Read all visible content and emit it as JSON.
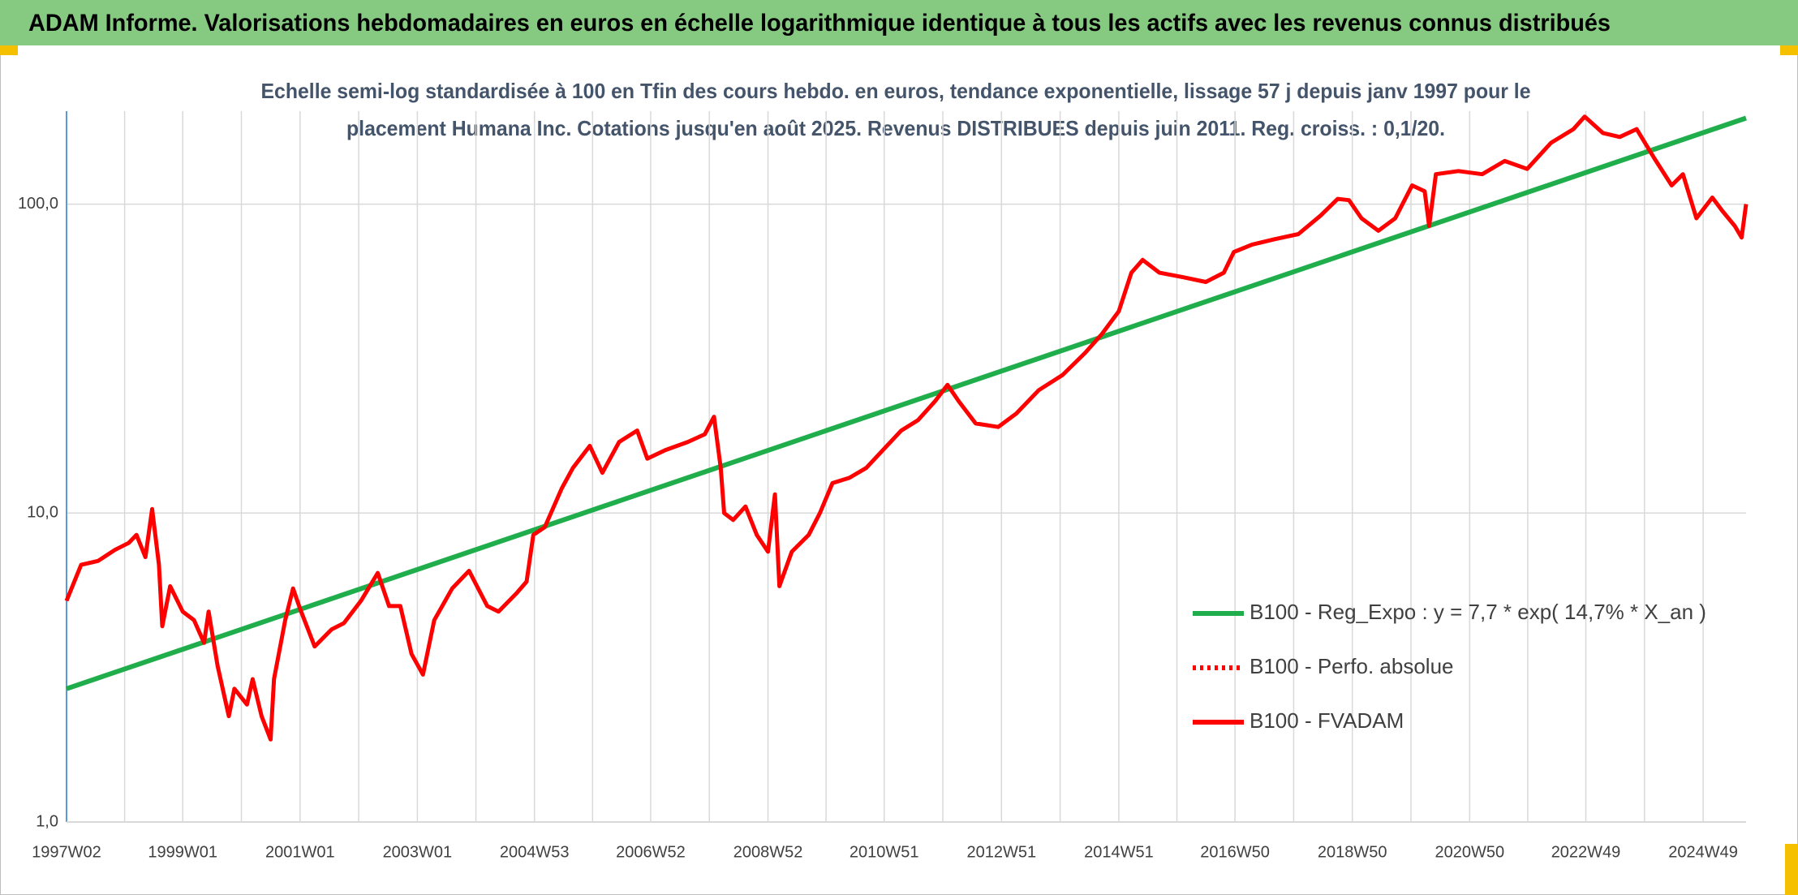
{
  "chart_data": {
    "type": "line",
    "title": "ADAM Informe. Valorisations hebdomadaires en euros en échelle logarithmique identique à tous les actifs avec les revenus connus distribués",
    "subtitle": [
      "Echelle semi-log standardisée à 100 en Tfin des cours hebdo. en euros, tendance exponentielle, lissage 57 j depuis janv 1997 pour le",
      "placement Humana Inc. Cotations jusqu'en août 2025. Revenus DISTRIBUES depuis juin 2011. Reg. croiss. : 0,1/20."
    ],
    "log_scale": true,
    "grid": true,
    "legend": "lower right",
    "xlim": [
      "1997W02",
      "2025W35"
    ],
    "xticks": [
      "1997W02",
      "1999W01",
      "2001W01",
      "2003W01",
      "2004W53",
      "2006W52",
      "2008W52",
      "2010W51",
      "2012W51",
      "2014W51",
      "2016W50",
      "2018W50",
      "2020W50",
      "2022W49",
      "2024W49"
    ],
    "ylim": [
      1,
      200
    ],
    "yticks": [
      {
        "value": 1,
        "label": "1,0"
      },
      {
        "value": 10,
        "label": "10,0"
      },
      {
        "value": 100,
        "label": "100,0"
      }
    ],
    "series": [
      {
        "name": "B100 - Reg_Expo : y = 7,7 * exp( 14,7% *  X_an )",
        "color": "#1fae4b",
        "style": "solid",
        "x": [
          "1997W02",
          "2025W35"
        ],
        "values": [
          2.7,
          190
        ]
      },
      {
        "name": "B100 - Perfo. absolue",
        "color": "#ff0000",
        "style": "dotted",
        "x": [],
        "values": []
      },
      {
        "name": "B100 - FVADAM",
        "color": "#ff0000",
        "style": "solid",
        "x": [
          "1997W02",
          "1997W15",
          "1997W30",
          "1997W45",
          "1998W05",
          "1998W12",
          "1998W20",
          "1998W26",
          "1998W32",
          "1998W35",
          "1998W42",
          "1999W01",
          "1999W11",
          "1999W20",
          "1999W24",
          "1999W32",
          "1999W42",
          "1999W47",
          "2000W06",
          "2000W11",
          "2000W19",
          "2000W27",
          "2000W30",
          "2000W40",
          "2000W47",
          "2001W01",
          "2001W14",
          "2001W29",
          "2001W40",
          "2002W03",
          "2002W18",
          "2002W28",
          "2002W38",
          "2002W48",
          "2003W06",
          "2003W16",
          "2003W32",
          "2003W47",
          "2004W11",
          "2004W21",
          "2004W37",
          "2004W46",
          "2004W52",
          "2005W10",
          "2005W25",
          "2005W35",
          "2005W50",
          "2006W09",
          "2006W24",
          "2006W40",
          "2006W49",
          "2007W13",
          "2007W33",
          "2007W48",
          "2008W04",
          "2008W10",
          "2008W13",
          "2008W21",
          "2008W32",
          "2008W42",
          "2008W52",
          "2009W06",
          "2009W10",
          "2009W21",
          "2009W36",
          "2009W46",
          "2010W05",
          "2010W20",
          "2010W35",
          "2010W50",
          "2011W14",
          "2011W29",
          "2011W44",
          "2012W03",
          "2012W13",
          "2012W28",
          "2012W48",
          "2013W12",
          "2013W32",
          "2014W01",
          "2014W21",
          "2014W36",
          "2014W51",
          "2015W10",
          "2015W20",
          "2015W35",
          "2016W04",
          "2016W24",
          "2016W40",
          "2016W49",
          "2017W13",
          "2017W33",
          "2018W02",
          "2018W22",
          "2018W37",
          "2018W47",
          "2019W06",
          "2019W21",
          "2019W36",
          "2019W51",
          "2020W10",
          "2020W14",
          "2020W20",
          "2020W40",
          "2021W09",
          "2021W29",
          "2021W49",
          "2022W18",
          "2022W38",
          "2022W48",
          "2023W12",
          "2023W27",
          "2023W42",
          "2024W06",
          "2024W21",
          "2024W31",
          "2024W43",
          "2025W05",
          "2025W14",
          "2025W25",
          "2025W31",
          "2025W35"
        ],
        "values": [
          5.2,
          6.8,
          7.0,
          7.6,
          8.0,
          8.5,
          7.2,
          10.3,
          6.8,
          4.3,
          5.8,
          4.8,
          4.5,
          3.8,
          4.8,
          3.2,
          2.2,
          2.7,
          2.4,
          2.9,
          2.2,
          1.85,
          2.9,
          4.5,
          5.7,
          4.9,
          3.7,
          4.2,
          4.4,
          5.2,
          6.4,
          5.0,
          5.0,
          3.5,
          3.0,
          4.5,
          5.7,
          6.5,
          5.0,
          4.8,
          5.5,
          6.0,
          8.5,
          9.0,
          12,
          14,
          16.5,
          13.5,
          17,
          18.5,
          15,
          16,
          17,
          18,
          20.5,
          14,
          10,
          9.5,
          10.5,
          8.5,
          7.5,
          11.5,
          5.8,
          7.5,
          8.5,
          10,
          12.5,
          13,
          14,
          16,
          18.5,
          20,
          23,
          26,
          23,
          19.5,
          19,
          21,
          25,
          28,
          33,
          38,
          45,
          60,
          66,
          60,
          58,
          56,
          60,
          70,
          74,
          77,
          80,
          92,
          104,
          103,
          90,
          82,
          90,
          115,
          110,
          85,
          125,
          128,
          125,
          138,
          130,
          158,
          175,
          192,
          170,
          165,
          175,
          140,
          115,
          125,
          90,
          105,
          95,
          85,
          78,
          100
        ]
      }
    ]
  }
}
